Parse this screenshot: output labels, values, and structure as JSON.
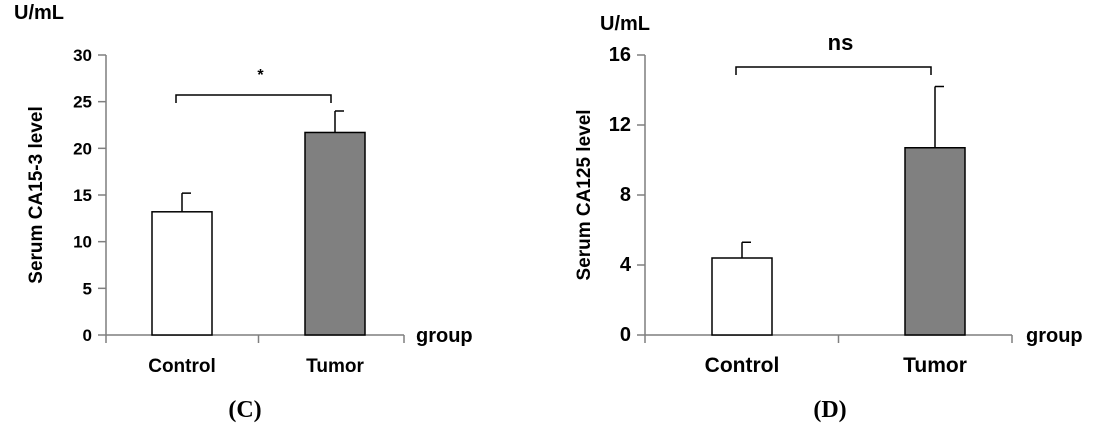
{
  "chart_data": [
    {
      "type": "bar",
      "panel_label": "(C)",
      "unit_label": "U/mL",
      "ylabel": "Serum CA15-3 level",
      "xlabel": "group",
      "categories": [
        "Control",
        "Tumor"
      ],
      "values": [
        13.2,
        21.7
      ],
      "errors": [
        2.0,
        2.3
      ],
      "bar_colors": [
        "#ffffff",
        "#808080"
      ],
      "ylim": [
        0,
        30
      ],
      "yticks": [
        0,
        5,
        10,
        15,
        20,
        25,
        30
      ],
      "significance": "*"
    },
    {
      "type": "bar",
      "panel_label": "(D)",
      "unit_label": "U/mL",
      "ylabel": "Serum CA125 level",
      "xlabel": "group",
      "categories": [
        "Control",
        "Tumor"
      ],
      "values": [
        4.4,
        10.7
      ],
      "errors": [
        0.9,
        3.5
      ],
      "bar_colors": [
        "#ffffff",
        "#808080"
      ],
      "ylim": [
        0,
        16
      ],
      "yticks": [
        0,
        4,
        8,
        12,
        16
      ],
      "significance": "ns"
    }
  ]
}
